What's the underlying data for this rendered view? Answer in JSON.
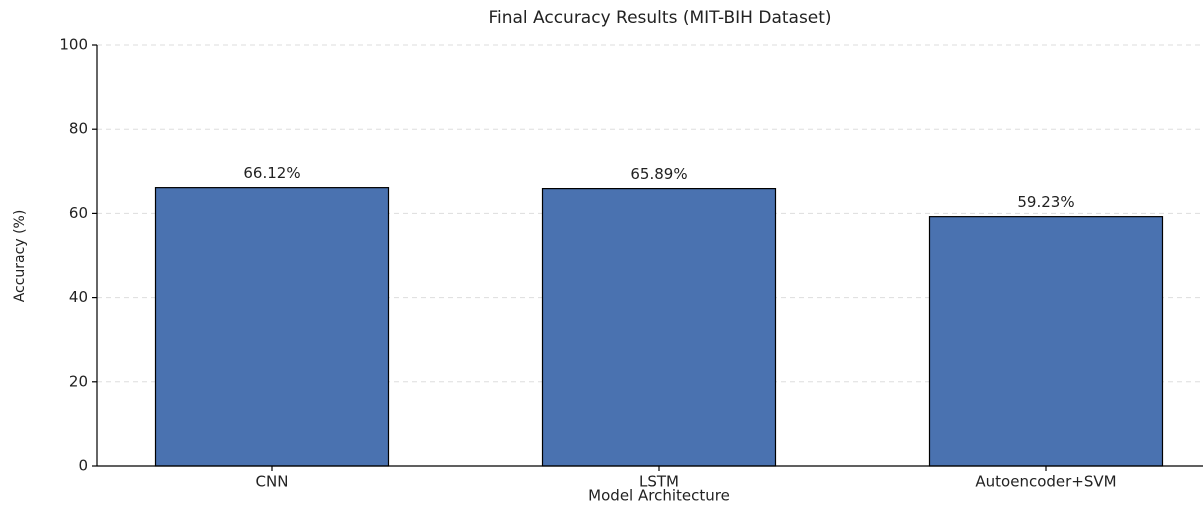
{
  "chart_data": {
    "type": "bar",
    "title": "Final Accuracy Results (MIT-BIH Dataset)",
    "x_label": "Model Architecture",
    "y_label": "Accuracy (%)",
    "categories": [
      "CNN",
      "LSTM",
      "Autoencoder+SVM"
    ],
    "values": [
      66.12,
      65.89,
      59.23
    ],
    "value_labels": [
      "66.12%",
      "65.89%",
      "59.23%"
    ],
    "color": "#4a72b0",
    "ylim": [
      0,
      100
    ],
    "yticks": [
      0,
      20,
      40,
      60,
      80,
      100
    ],
    "grid": true
  }
}
